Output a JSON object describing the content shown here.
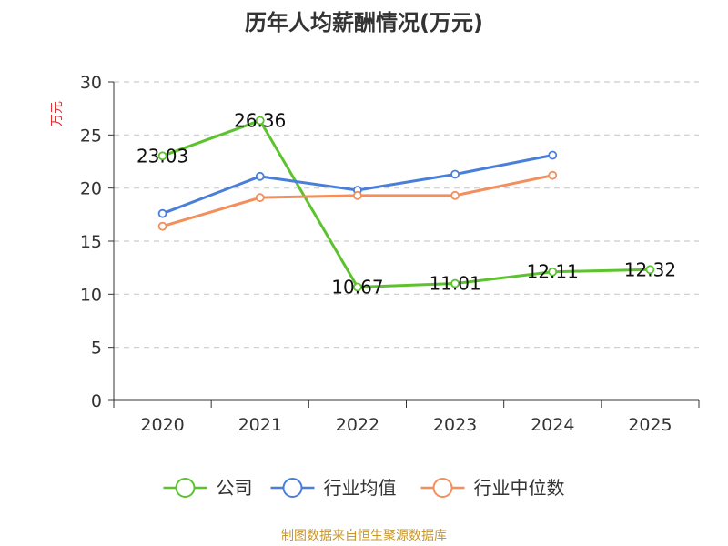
{
  "chart_data": {
    "type": "line",
    "title": "历年人均薪酬情况(万元)",
    "ylabel": "万元",
    "categories": [
      "2020",
      "2021",
      "2022",
      "2023",
      "2024",
      "2025"
    ],
    "ylim": [
      0,
      30
    ],
    "yticks": [
      0,
      5,
      10,
      15,
      20,
      25,
      30
    ],
    "grid": "horizontal-dashed",
    "legend_position": "bottom",
    "series": [
      {
        "name": "公司",
        "color": "#5cc32e",
        "labeled": true,
        "values": [
          23.03,
          26.36,
          10.67,
          11.01,
          12.11,
          12.32
        ],
        "labels": [
          "23.03",
          "26.36",
          "10.67",
          "11.01",
          "12.11",
          "12.32"
        ]
      },
      {
        "name": "行业均值",
        "color": "#4a7fd9",
        "labeled": false,
        "values": [
          17.6,
          21.1,
          19.8,
          21.3,
          23.1,
          null
        ]
      },
      {
        "name": "行业中位数",
        "color": "#f28f5c",
        "labeled": false,
        "values": [
          16.4,
          19.1,
          19.3,
          19.3,
          21.2,
          null
        ]
      }
    ]
  },
  "footer": "制图数据来自恒生聚源数据库",
  "colors": {
    "axis": "#333333",
    "grid": "#cccccc",
    "ylabel": "#e03030",
    "footer": "#c8962a"
  }
}
